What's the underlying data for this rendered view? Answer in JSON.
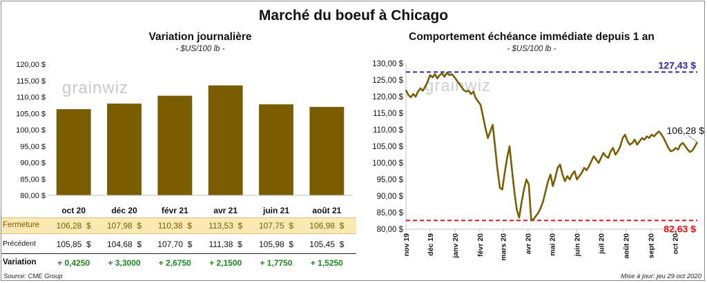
{
  "title": "Marché du boeuf à Chicago",
  "left_panel": {
    "title": "Variation  journalière",
    "unit": "- $US/100 lb -",
    "watermark": "grainwiz"
  },
  "right_panel": {
    "title": "Comportement  échéance immédiate depuis 1 an",
    "unit": "- $US/100 lb -",
    "watermark": "grainwiz"
  },
  "table": {
    "rows": [
      {
        "label": "Fermeture",
        "values": [
          "106,28  $",
          "107,98  $",
          "110,38  $",
          "113,53  $",
          "107,75  $",
          "106,98  $"
        ]
      },
      {
        "label": "Précédent",
        "values": [
          "105,85  $",
          "104,68  $",
          "107,70  $",
          "111,38  $",
          "105,98  $",
          "105,45  $"
        ]
      },
      {
        "label": "Variation",
        "values": [
          "+ 0,4250",
          "+ 3,3000",
          "+ 2,6750",
          "+ 2,1500",
          "+ 1,7750",
          "+ 1,5250"
        ]
      }
    ]
  },
  "footer": {
    "source": "Source: CME Group",
    "updated": "Mise à jour: jeu 29 oct 2020"
  },
  "colors": {
    "bar": "#7a5d00",
    "line": "#7a5d00",
    "max_line": "#2d2aa8",
    "min_line": "#e01010",
    "fermeture_bg": "#fbe9b4",
    "variation_text": "#1a8a1a"
  },
  "chart_data": [
    {
      "type": "bar",
      "title": "Variation  journalière",
      "categories": [
        "oct 20",
        "déc 20",
        "févr 21",
        "avr 21",
        "juin 21",
        "août 21"
      ],
      "values": [
        106.28,
        107.98,
        110.38,
        113.53,
        107.75,
        106.98
      ],
      "ylim": [
        80,
        120
      ],
      "yticks": [
        80,
        85,
        90,
        95,
        100,
        105,
        110,
        115,
        120
      ],
      "ytick_labels": [
        "80,00 $",
        "85,00 $",
        "90,00 $",
        "95,00 $",
        "100,00 $",
        "105,00 $",
        "110,00 $",
        "115,00 $",
        "120,00 $"
      ],
      "grid": false
    },
    {
      "type": "line",
      "title": "Comportement  échéance immédiate depuis 1 an",
      "ylim": [
        80,
        130
      ],
      "yticks": [
        80,
        85,
        90,
        95,
        100,
        105,
        110,
        115,
        120,
        125,
        130
      ],
      "ytick_labels": [
        "80,00 $",
        "85,00 $",
        "90,00 $",
        "95,00 $",
        "100,00 $",
        "105,00 $",
        "110,00 $",
        "115,00 $",
        "120,00 $",
        "125,00 $",
        "130,00 $"
      ],
      "xlim": [
        "2019-11-01",
        "2020-10-29"
      ],
      "xticks": [
        "2019-11-01",
        "2019-12-01",
        "2020-01-01",
        "2020-02-01",
        "2020-03-01",
        "2020-04-01",
        "2020-05-01",
        "2020-06-01",
        "2020-07-01",
        "2020-08-01",
        "2020-09-01",
        "2020-10-01"
      ],
      "xtick_labels": [
        "nov 19",
        "déc 19",
        "janv 20",
        "févr 20",
        "mars 20",
        "avr 20",
        "mai 20",
        "juin 20",
        "juil 20",
        "août 20",
        "sept 20",
        "oct 20"
      ],
      "series": [
        {
          "points": [
            [
              "2019-11-01",
              122.0
            ],
            [
              "2019-11-04",
              120.5
            ],
            [
              "2019-11-07",
              119.8
            ],
            [
              "2019-11-10",
              120.8
            ],
            [
              "2019-11-13",
              120.0
            ],
            [
              "2019-11-16",
              121.5
            ],
            [
              "2019-11-19",
              122.5
            ],
            [
              "2019-11-22",
              121.8
            ],
            [
              "2019-11-25",
              123.0
            ],
            [
              "2019-11-28",
              124.5
            ],
            [
              "2019-12-01",
              126.5
            ],
            [
              "2019-12-04",
              125.8
            ],
            [
              "2019-12-07",
              126.8
            ],
            [
              "2019-12-10",
              125.5
            ],
            [
              "2019-12-13",
              126.5
            ],
            [
              "2019-12-16",
              127.0
            ],
            [
              "2019-12-19",
              126.0
            ],
            [
              "2019-12-22",
              127.2
            ],
            [
              "2019-12-25",
              126.5
            ],
            [
              "2019-12-28",
              126.8
            ],
            [
              "2019-12-31",
              126.0
            ],
            [
              "2020-01-03",
              125.0
            ],
            [
              "2020-01-06",
              124.0
            ],
            [
              "2020-01-09",
              123.0
            ],
            [
              "2020-01-12",
              122.0
            ],
            [
              "2020-01-15",
              121.5
            ],
            [
              "2020-01-18",
              121.8
            ],
            [
              "2020-01-21",
              120.8
            ],
            [
              "2020-01-24",
              121.5
            ],
            [
              "2020-01-27",
              119.5
            ],
            [
              "2020-01-30",
              118.5
            ],
            [
              "2020-02-02",
              117.5
            ],
            [
              "2020-02-05",
              114.0
            ],
            [
              "2020-02-08",
              110.5
            ],
            [
              "2020-02-11",
              107.5
            ],
            [
              "2020-02-14",
              109.5
            ],
            [
              "2020-02-17",
              111.5
            ],
            [
              "2020-02-20",
              105.0
            ],
            [
              "2020-02-23",
              98.0
            ],
            [
              "2020-02-26",
              92.5
            ],
            [
              "2020-02-29",
              92.0
            ],
            [
              "2020-03-03",
              97.0
            ],
            [
              "2020-03-06",
              101.5
            ],
            [
              "2020-03-09",
              105.0
            ],
            [
              "2020-03-12",
              98.0
            ],
            [
              "2020-03-15",
              91.5
            ],
            [
              "2020-03-18",
              86.0
            ],
            [
              "2020-03-21",
              83.5
            ],
            [
              "2020-03-24",
              88.0
            ],
            [
              "2020-03-27",
              92.0
            ],
            [
              "2020-03-30",
              95.0
            ],
            [
              "2020-04-02",
              93.5
            ],
            [
              "2020-04-05",
              82.7
            ],
            [
              "2020-04-08",
              83.0
            ],
            [
              "2020-04-11",
              84.0
            ],
            [
              "2020-04-14",
              85.0
            ],
            [
              "2020-04-17",
              86.5
            ],
            [
              "2020-04-20",
              88.5
            ],
            [
              "2020-04-23",
              91.5
            ],
            [
              "2020-04-26",
              94.5
            ],
            [
              "2020-04-29",
              96.5
            ],
            [
              "2020-05-02",
              93.0
            ],
            [
              "2020-05-05",
              95.5
            ],
            [
              "2020-05-08",
              98.5
            ],
            [
              "2020-05-11",
              99.5
            ],
            [
              "2020-05-14",
              96.5
            ],
            [
              "2020-05-17",
              94.5
            ],
            [
              "2020-05-20",
              96.0
            ],
            [
              "2020-05-23",
              95.0
            ],
            [
              "2020-05-26",
              96.5
            ],
            [
              "2020-05-29",
              97.5
            ],
            [
              "2020-06-01",
              95.0
            ],
            [
              "2020-06-04",
              96.0
            ],
            [
              "2020-06-07",
              97.0
            ],
            [
              "2020-06-10",
              98.5
            ],
            [
              "2020-06-13",
              97.8
            ],
            [
              "2020-06-16",
              99.0
            ],
            [
              "2020-06-19",
              100.5
            ],
            [
              "2020-06-22",
              102.0
            ],
            [
              "2020-06-25",
              101.0
            ],
            [
              "2020-06-28",
              100.0
            ],
            [
              "2020-07-01",
              101.5
            ],
            [
              "2020-07-04",
              103.0
            ],
            [
              "2020-07-07",
              102.0
            ],
            [
              "2020-07-10",
              101.5
            ],
            [
              "2020-07-13",
              103.5
            ],
            [
              "2020-07-16",
              104.5
            ],
            [
              "2020-07-19",
              102.5
            ],
            [
              "2020-07-22",
              103.5
            ],
            [
              "2020-07-25",
              105.0
            ],
            [
              "2020-07-28",
              107.5
            ],
            [
              "2020-07-31",
              108.5
            ],
            [
              "2020-08-03",
              106.5
            ],
            [
              "2020-08-06",
              105.5
            ],
            [
              "2020-08-09",
              106.0
            ],
            [
              "2020-08-12",
              107.0
            ],
            [
              "2020-08-15",
              105.5
            ],
            [
              "2020-08-18",
              106.5
            ],
            [
              "2020-08-21",
              107.5
            ],
            [
              "2020-08-24",
              107.0
            ],
            [
              "2020-08-27",
              108.0
            ],
            [
              "2020-08-30",
              107.5
            ],
            [
              "2020-09-02",
              108.5
            ],
            [
              "2020-09-05",
              108.0
            ],
            [
              "2020-09-08",
              108.8
            ],
            [
              "2020-09-11",
              109.5
            ],
            [
              "2020-09-14",
              108.7
            ],
            [
              "2020-09-17",
              107.5
            ],
            [
              "2020-09-20",
              106.0
            ],
            [
              "2020-09-23",
              104.5
            ],
            [
              "2020-09-26",
              103.5
            ],
            [
              "2020-09-29",
              103.8
            ],
            [
              "2020-10-02",
              104.5
            ],
            [
              "2020-10-05",
              104.0
            ],
            [
              "2020-10-08",
              105.5
            ],
            [
              "2020-10-11",
              106.0
            ],
            [
              "2020-10-14",
              105.0
            ],
            [
              "2020-10-17",
              104.0
            ],
            [
              "2020-10-20",
              103.3
            ],
            [
              "2020-10-23",
              103.8
            ],
            [
              "2020-10-26",
              105.0
            ],
            [
              "2020-10-29",
              106.28
            ]
          ]
        }
      ],
      "reference_lines": [
        {
          "value": 127.43,
          "label": "127,43 $",
          "color": "#2d2aa8"
        },
        {
          "value": 82.63,
          "label": "82,63 $",
          "color": "#e01010"
        }
      ],
      "annotations": [
        {
          "date": "2020-10-29",
          "value": 106.28,
          "label": "106,28 $"
        }
      ],
      "grid": false
    }
  ]
}
